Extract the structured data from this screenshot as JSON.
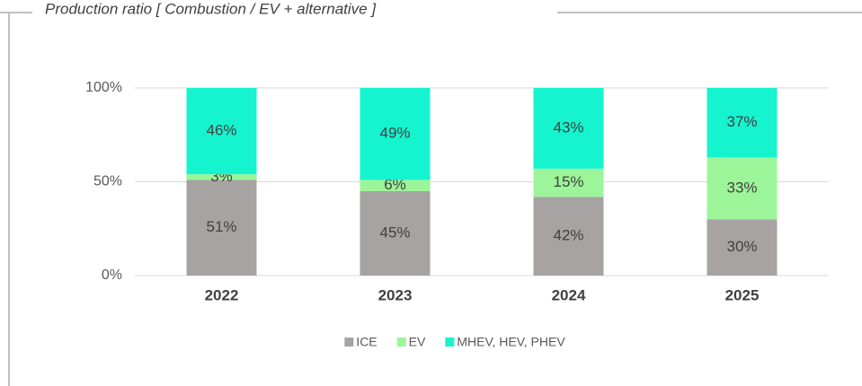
{
  "chart_data": {
    "type": "stacked_bar",
    "title": "Production ratio [ Combustion / EV + alternative ]",
    "categories": [
      "2022",
      "2023",
      "2024",
      "2025"
    ],
    "series": [
      {
        "name": "ICE",
        "color": "#a7a3a3",
        "values": [
          51,
          45,
          42,
          30
        ],
        "value_labels": [
          "51%",
          "45%",
          "42%",
          "30%"
        ]
      },
      {
        "name": "EV",
        "color": "#9cf598",
        "values": [
          3,
          6,
          15,
          33
        ],
        "value_labels": [
          "3%",
          "6%",
          "15%",
          "33%"
        ]
      },
      {
        "name": "MHEV, HEV, PHEV",
        "color": "#16f3cf",
        "values": [
          46,
          49,
          43,
          37
        ],
        "value_labels": [
          "46%",
          "49%",
          "43%",
          "37%"
        ]
      }
    ],
    "ylim": [
      0,
      100
    ],
    "yticks": [
      {
        "value": 0,
        "label": "0%"
      },
      {
        "value": 50,
        "label": "50%"
      },
      {
        "value": 100,
        "label": "100%"
      }
    ],
    "grid": true,
    "legend": "bottom"
  }
}
